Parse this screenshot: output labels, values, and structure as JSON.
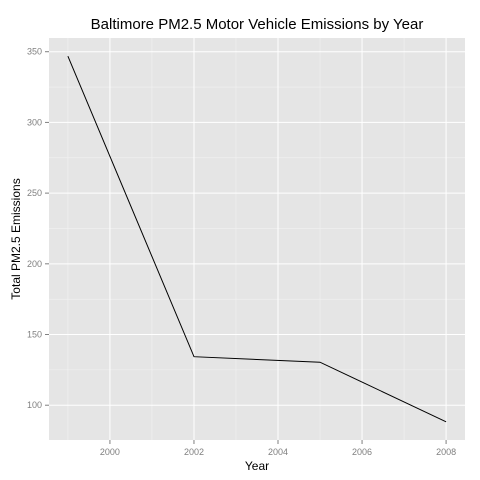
{
  "chart_data": {
    "type": "line",
    "title": "Baltimore PM2.5 Motor Vehicle Emissions by Year",
    "xlabel": "Year",
    "ylabel": "Total PM2.5 Emissions",
    "x": [
      1999,
      2002,
      2005,
      2008
    ],
    "series": [
      {
        "values": [
          346.8,
          134.3,
          130.4,
          88.3
        ],
        "color": "#000000"
      }
    ],
    "xlim": [
      1998.55,
      2008.45
    ],
    "ylim": [
      75.4,
      359.7
    ],
    "xticks": [
      2000,
      2002,
      2004,
      2006,
      2008
    ],
    "yticks": [
      100,
      150,
      200,
      250,
      300,
      350
    ],
    "grid": true,
    "legend": "none",
    "panel_color": "#e5e5e5"
  }
}
